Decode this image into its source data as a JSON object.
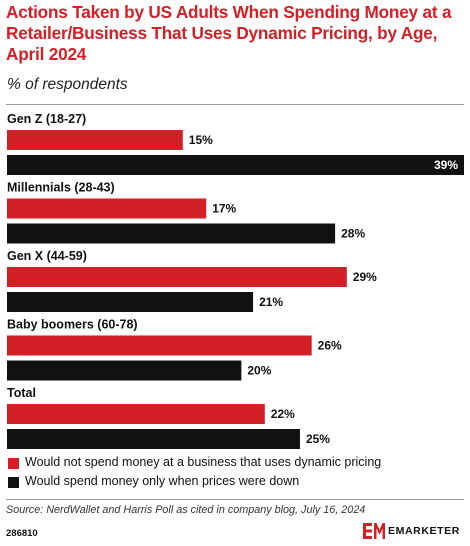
{
  "header": {
    "title": "Actions Taken by US Adults When Spending Money at a Retailer/Business That Uses Dynamic Pricing, by Age, April 2024",
    "subtitle": "% of respondents"
  },
  "colors": {
    "series_red": "#d31f26",
    "series_black": "#111111",
    "title": "#d31f26"
  },
  "chart_data": {
    "type": "bar",
    "orientation": "horizontal",
    "categories": [
      "Gen Z (18-27)",
      "Millennials (28-43)",
      "Gen X (44-59)",
      "Baby boomers (60-78)",
      "Total"
    ],
    "series": [
      {
        "name": "Would not spend money at a business that uses dynamic pricing",
        "values": [
          15,
          17,
          29,
          26,
          22
        ],
        "color": "#d31f26"
      },
      {
        "name": "Would spend money only when prices were down",
        "values": [
          39,
          28,
          21,
          20,
          25
        ],
        "color": "#111111"
      }
    ],
    "value_suffix": "%",
    "xlim": [
      0,
      39
    ],
    "grid": false,
    "legend": "bottom"
  },
  "footer": {
    "source": "Source: NerdWallet and Harris Poll as cited in company blog, July 16, 2024",
    "chart_id": "286810",
    "brand": "EMARKETER"
  }
}
